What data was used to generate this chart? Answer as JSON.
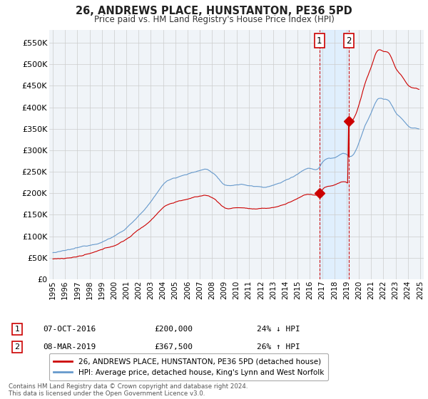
{
  "title": "26, ANDREWS PLACE, HUNSTANTON, PE36 5PD",
  "subtitle": "Price paid vs. HM Land Registry's House Price Index (HPI)",
  "legend_line1": "26, ANDREWS PLACE, HUNSTANTON, PE36 5PD (detached house)",
  "legend_line2": "HPI: Average price, detached house, King's Lynn and West Norfolk",
  "annotation1_date": "07-OCT-2016",
  "annotation1_price": "£200,000",
  "annotation1_hpi": "24% ↓ HPI",
  "annotation1_year": 2016.78,
  "annotation1_value": 200000,
  "annotation2_date": "08-MAR-2019",
  "annotation2_price": "£367,500",
  "annotation2_hpi": "26% ↑ HPI",
  "annotation2_year": 2019.19,
  "annotation2_value": 367500,
  "footer": "Contains HM Land Registry data © Crown copyright and database right 2024.\nThis data is licensed under the Open Government Licence v3.0.",
  "price_color": "#cc0000",
  "hpi_color": "#6699cc",
  "shade_color": "#ddeeff",
  "ylim_min": 0,
  "ylim_max": 580000,
  "grid_color": "#cccccc",
  "background_color": "#ffffff",
  "plot_bg_color": "#f0f4f8"
}
